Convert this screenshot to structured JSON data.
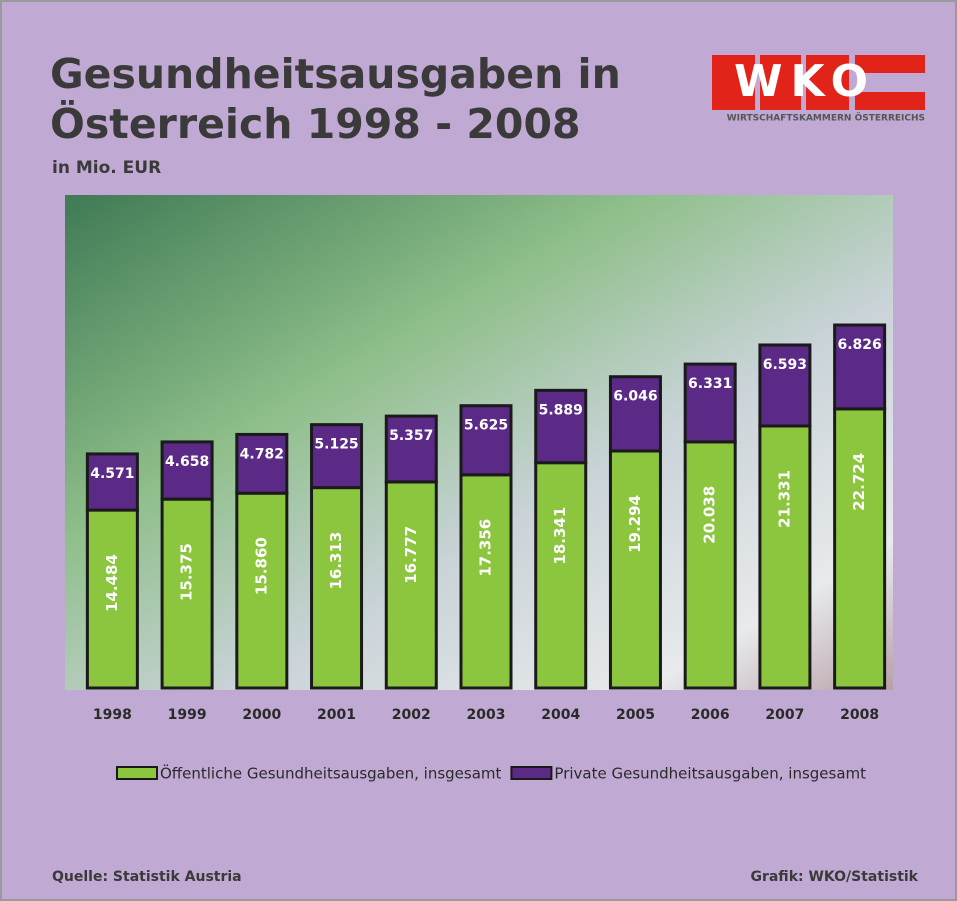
{
  "chart_data": {
    "type": "stacked-bar",
    "title": [
      "Gesundheitsausgaben in",
      "Österreich 1998 - 2008"
    ],
    "subtitle": "in Mio. EUR",
    "logo": {
      "letters": "WKO",
      "tagline": "WIRTSCHAFTSKAMMERN ÖSTERREICHS"
    },
    "categories": [
      "1998",
      "1999",
      "2000",
      "2001",
      "2002",
      "2003",
      "2004",
      "2005",
      "2006",
      "2007",
      "2008"
    ],
    "series": [
      {
        "name": "Öffentliche Gesundheitsausgaben, insgesamt",
        "color": "#8cc63f",
        "values": [
          14484,
          15375,
          15860,
          16313,
          16777,
          17356,
          18341,
          19294,
          20038,
          21331,
          22724
        ],
        "value_labels": [
          "14.484",
          "15.375",
          "15.860",
          "16.313",
          "16.777",
          "17.356",
          "18.341",
          "19.294",
          "20.038",
          "21.331",
          "22.724"
        ]
      },
      {
        "name": "Private Gesundheitsausgaben, insgesamt",
        "color": "#5b2a86",
        "values": [
          4571,
          4658,
          4782,
          5125,
          5357,
          5625,
          5889,
          6046,
          6331,
          6593,
          6826
        ],
        "value_labels": [
          "4.571",
          "4.658",
          "4.782",
          "5.125",
          "5.357",
          "5.625",
          "5.889",
          "6.046",
          "6.331",
          "6.593",
          "6.826"
        ]
      }
    ],
    "source": "Quelle: Statistik Austria",
    "credit": "Grafik: WKO/Statistik"
  }
}
